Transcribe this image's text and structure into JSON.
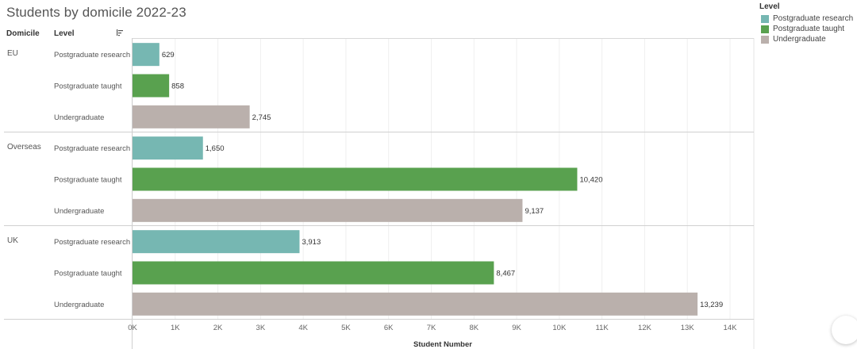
{
  "chart_data": {
    "type": "bar",
    "orientation": "horizontal",
    "title": "Students by domicile 2022-23",
    "row_headers": {
      "group": "Domicile",
      "category": "Level"
    },
    "groups": [
      "EU",
      "Overseas",
      "UK"
    ],
    "categories": [
      "Postgraduate research",
      "Postgraduate taught",
      "Undergraduate"
    ],
    "series": [
      {
        "group": "EU",
        "values": [
          629,
          858,
          2745
        ],
        "labels": [
          "629",
          "858",
          "2,745"
        ]
      },
      {
        "group": "Overseas",
        "values": [
          1650,
          10420,
          9137
        ],
        "labels": [
          "1,650",
          "10,420",
          "9,137"
        ]
      },
      {
        "group": "UK",
        "values": [
          3913,
          8467,
          13239
        ],
        "labels": [
          "3,913",
          "8,467",
          "13,239"
        ]
      }
    ],
    "xlabel": "Student Number",
    "xlim": [
      0,
      14000
    ],
    "xticks": [
      0,
      1000,
      2000,
      3000,
      4000,
      5000,
      6000,
      7000,
      8000,
      9000,
      10000,
      11000,
      12000,
      13000,
      14000
    ],
    "xtick_labels": [
      "0K",
      "1K",
      "2K",
      "3K",
      "4K",
      "5K",
      "6K",
      "7K",
      "8K",
      "9K",
      "10K",
      "11K",
      "12K",
      "13K",
      "14K"
    ],
    "grid": true,
    "legend": {
      "title": "Level",
      "position": "top-right",
      "items": [
        {
          "label": "Postgraduate research",
          "color": "#76b7b2"
        },
        {
          "label": "Postgraduate taught",
          "color": "#59a14f"
        },
        {
          "label": "Undergraduate",
          "color": "#bab0ac"
        }
      ]
    }
  }
}
